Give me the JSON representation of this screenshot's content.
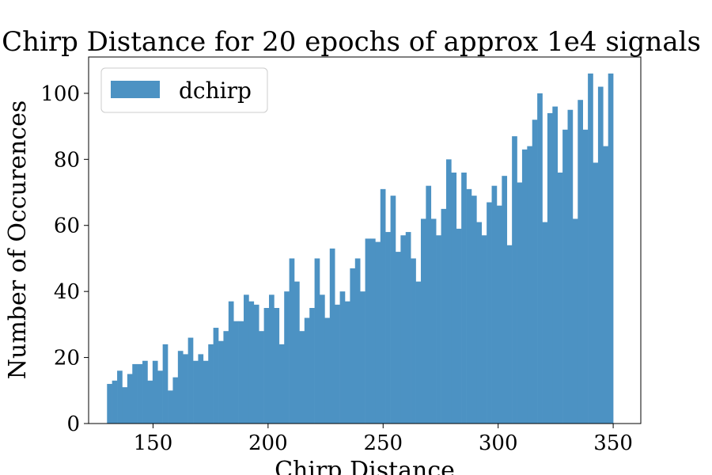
{
  "chart_data": {
    "type": "bar",
    "title": "Chirp Distance for 20 epochs of approx 1e4 signals",
    "xlabel": "Chirp Distance",
    "ylabel": "Number of Occurences",
    "xlim": [
      122,
      362
    ],
    "ylim": [
      0,
      111
    ],
    "xticks": [
      150,
      200,
      250,
      300,
      350
    ],
    "yticks": [
      0,
      20,
      40,
      60,
      80,
      100
    ],
    "grid": false,
    "legend_position": "top-left",
    "series": [
      {
        "name": "dchirp",
        "color": "#4c92c3",
        "bin_start": 130,
        "bin_end": 350,
        "values": [
          12,
          13,
          16,
          11,
          15,
          18,
          18,
          19,
          13,
          19,
          16,
          24,
          10,
          14,
          22,
          21,
          26,
          19,
          21,
          19,
          24,
          29,
          25,
          28,
          37,
          31,
          31,
          39,
          37,
          36,
          28,
          35,
          39,
          35,
          24,
          40,
          50,
          43,
          28,
          32,
          35,
          50,
          39,
          32,
          53,
          36,
          40,
          37,
          47,
          50,
          40,
          56,
          56,
          55,
          71,
          58,
          69,
          52,
          57,
          58,
          50,
          43,
          62,
          72,
          62,
          57,
          65,
          80,
          76,
          59,
          76,
          71,
          69,
          61,
          57,
          67,
          72,
          66,
          75,
          54,
          87,
          73,
          83,
          84,
          92,
          100,
          61,
          94,
          96,
          76,
          89,
          95,
          62,
          98,
          89,
          106,
          79,
          102,
          84,
          106
        ]
      }
    ]
  }
}
